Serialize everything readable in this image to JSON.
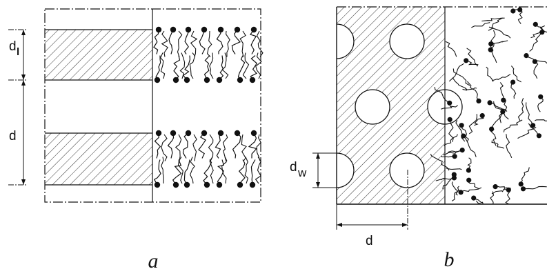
{
  "panels": {
    "a": {
      "caption": "a",
      "dim_labels": {
        "layer_thickness": "d",
        "period": "d"
      },
      "dim_subscripts": {
        "layer_thickness": "l"
      }
    },
    "b": {
      "caption": "b",
      "dim_labels": {
        "channel_diameter": "d",
        "spacing": "d"
      },
      "dim_subscripts": {
        "channel_diameter": "w"
      }
    }
  },
  "colors": {
    "ink": "#111111",
    "background": "#ffffff"
  }
}
